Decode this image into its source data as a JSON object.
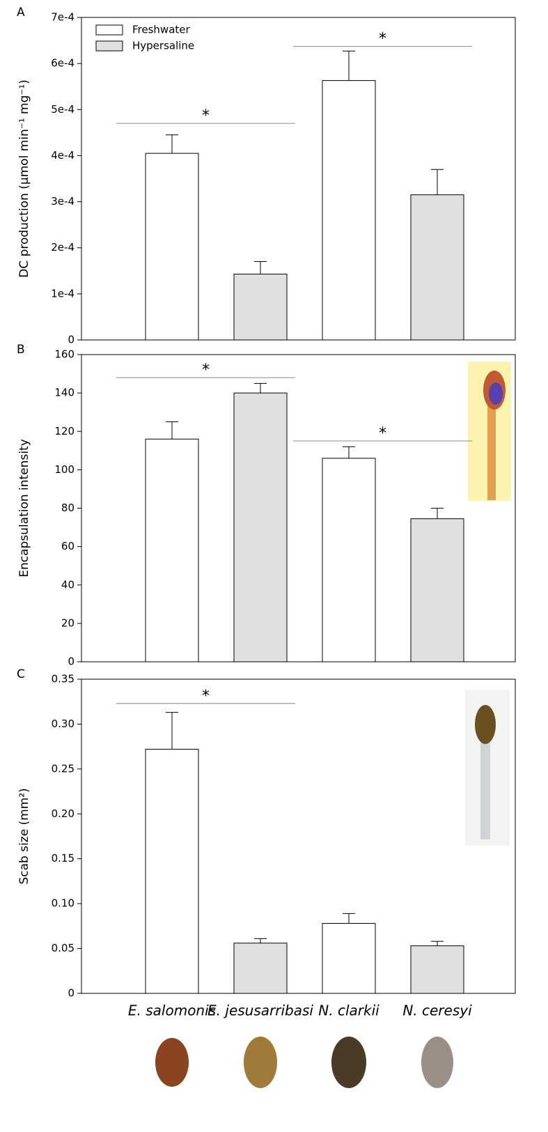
{
  "chart_data": [
    {
      "type": "bar",
      "panel_label": "A",
      "y_label": "DC production (µmol min⁻¹ mg⁻¹)",
      "legend": "upper left",
      "ylim": [
        0,
        0.0007
      ],
      "yticks": [
        0,
        {
          "value": 0.0001,
          "label": "1e-4"
        },
        {
          "value": 0.0002,
          "label": "2e-4"
        },
        {
          "value": 0.0003,
          "label": "3e-4"
        },
        {
          "value": 0.0004,
          "label": "4e-4"
        },
        {
          "value": 0.0005,
          "label": "5e-4"
        },
        {
          "value": 0.0006,
          "label": "6e-4"
        },
        {
          "value": 0.0007,
          "label": "7e-4"
        }
      ],
      "series": [
        {
          "name": "Freshwater",
          "color": "#ffffff",
          "values": [
            0.000405,
            null,
            0.000563,
            null
          ],
          "errors": [
            4e-05,
            null,
            6.4e-05,
            null
          ]
        },
        {
          "name": "Hypersaline",
          "color": "#e0e0e0",
          "values": [
            null,
            0.000143,
            null,
            0.000315
          ],
          "errors": [
            null,
            2.7e-05,
            null,
            5.5e-05
          ]
        }
      ],
      "annotations": [
        {
          "text": "*",
          "y": 0.00047
        },
        {
          "text": "*",
          "y": 0.000637
        }
      ]
    },
    {
      "type": "bar",
      "panel_label": "B",
      "y_label": "Encapsulation intensity",
      "ylim": [
        0,
        160
      ],
      "yticks": [
        0,
        20,
        40,
        60,
        80,
        100,
        120,
        140,
        160
      ],
      "series": [
        {
          "name": "Freshwater",
          "color": "#ffffff",
          "values": [
            116,
            null,
            106,
            null
          ],
          "errors": [
            9,
            null,
            6,
            null
          ]
        },
        {
          "name": "Hypersaline",
          "color": "#e0e0e0",
          "values": [
            null,
            140,
            null,
            74.5
          ],
          "errors": [
            null,
            5,
            null,
            5.5
          ]
        }
      ],
      "annotations": [
        {
          "text": "*",
          "y": 148
        },
        {
          "text": "*",
          "y": 115
        }
      ]
    },
    {
      "type": "bar",
      "panel_label": "C",
      "y_label": "Scab size (mm²)",
      "categories": [
        "E. salomonis",
        "E. jesusarribasi",
        "N. clarkii",
        "N. ceresyi"
      ],
      "ylim": [
        0,
        0.35
      ],
      "yticks": [
        0,
        0.05,
        {
          "value": 0.1,
          "label": "0.10"
        },
        0.15,
        {
          "value": 0.2,
          "label": "0.20"
        },
        0.25,
        {
          "value": 0.3,
          "label": "0.30"
        },
        0.35
      ],
      "series": [
        {
          "name": "Freshwater",
          "color": "#ffffff",
          "values": [
            0.272,
            null,
            0.078,
            null
          ],
          "errors": [
            0.041,
            null,
            0.011,
            null
          ]
        },
        {
          "name": "Hypersaline",
          "color": "#e0e0e0",
          "values": [
            null,
            0.056,
            null,
            0.053
          ],
          "errors": [
            null,
            0.005,
            null,
            0.005
          ]
        }
      ],
      "annotations": [
        {
          "text": "*",
          "y": 0.323
        }
      ]
    }
  ]
}
